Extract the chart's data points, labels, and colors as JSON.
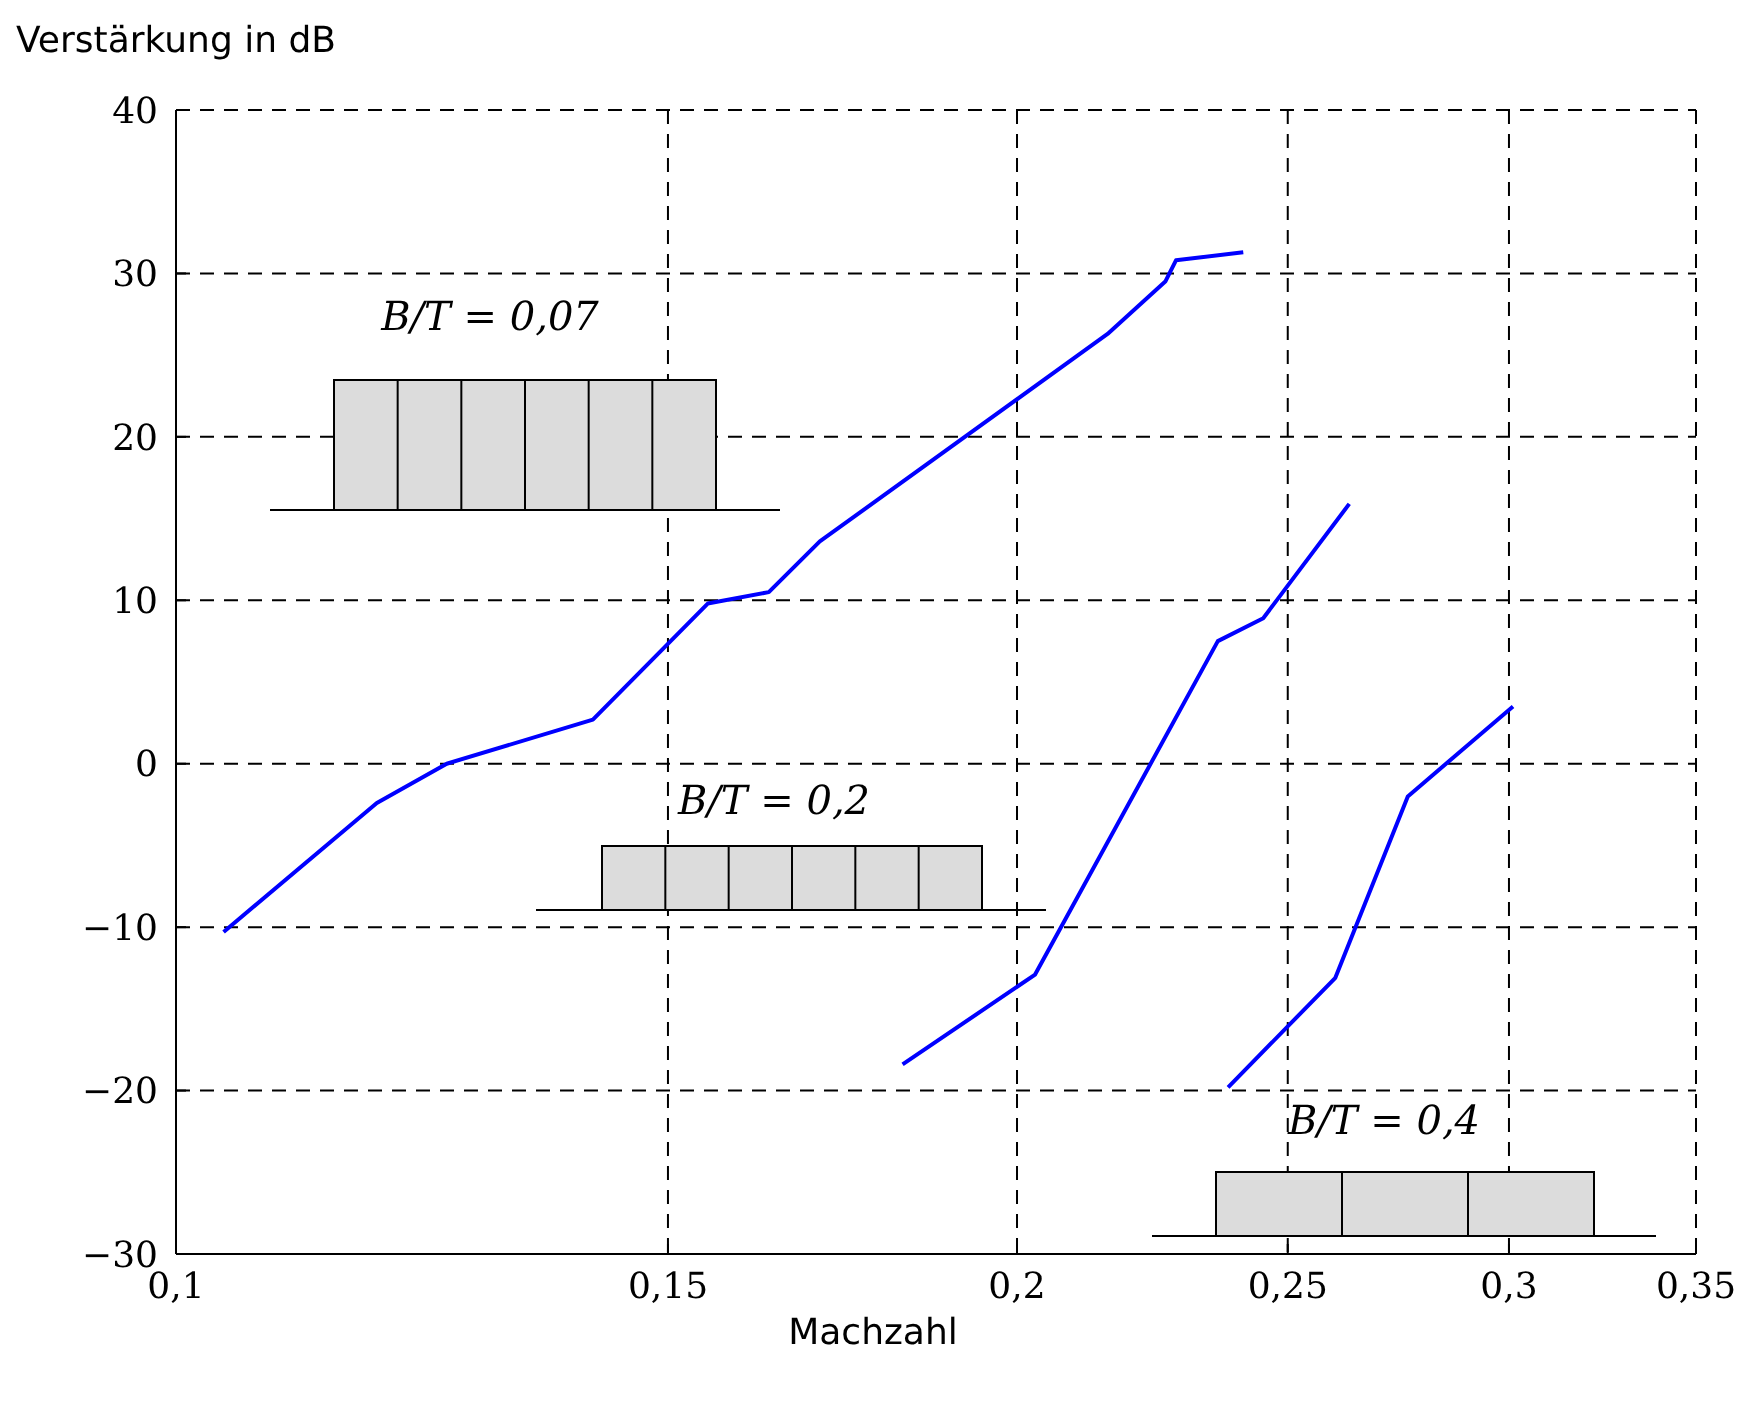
{
  "chart_data": {
    "type": "line",
    "ylabel": "Verstärkung in dB",
    "xlabel": "Machzahl",
    "log": "x",
    "grid": true,
    "xlim": [
      0.1,
      0.35
    ],
    "ylim": [
      -30,
      40
    ],
    "xticks": [
      {
        "value": 0.1,
        "label": "0,1"
      },
      {
        "value": 0.15,
        "label": "0,15"
      },
      {
        "value": 0.2,
        "label": "0,2"
      },
      {
        "value": 0.25,
        "label": "0,25"
      },
      {
        "value": 0.3,
        "label": "0,3"
      },
      {
        "value": 0.35,
        "label": "0,35"
      }
    ],
    "yticks": [
      {
        "value": -30,
        "label": "−30"
      },
      {
        "value": -20,
        "label": "−20"
      },
      {
        "value": -10,
        "label": "−10"
      },
      0,
      10,
      20,
      30,
      40
    ],
    "series": [
      {
        "color": "#0000ff",
        "x": [
          0.104,
          0.118,
          0.125,
          0.141,
          0.155,
          0.163,
          0.17,
          0.2155,
          0.226,
          0.228,
          0.241
        ],
        "values": [
          -10.3,
          -2.4,
          0,
          2.7,
          9.8,
          10.5,
          13.6,
          26.3,
          29.5,
          30.8,
          31.3
        ]
      },
      {
        "color": "#0000ff",
        "x": [
          0.182,
          0.203,
          0.236,
          0.245,
          0.263
        ],
        "values": [
          -18.4,
          -12.9,
          7.5,
          8.9,
          15.9
        ]
      },
      {
        "color": "#0000ff",
        "x": [
          0.238,
          0.26,
          0.276,
          0.301
        ],
        "values": [
          -19.8,
          -13.1,
          -2,
          3.5
        ]
      }
    ],
    "annotations": [
      "B/T = 0,07",
      "B/T = 0,2",
      "B/T = 0,4"
    ]
  }
}
